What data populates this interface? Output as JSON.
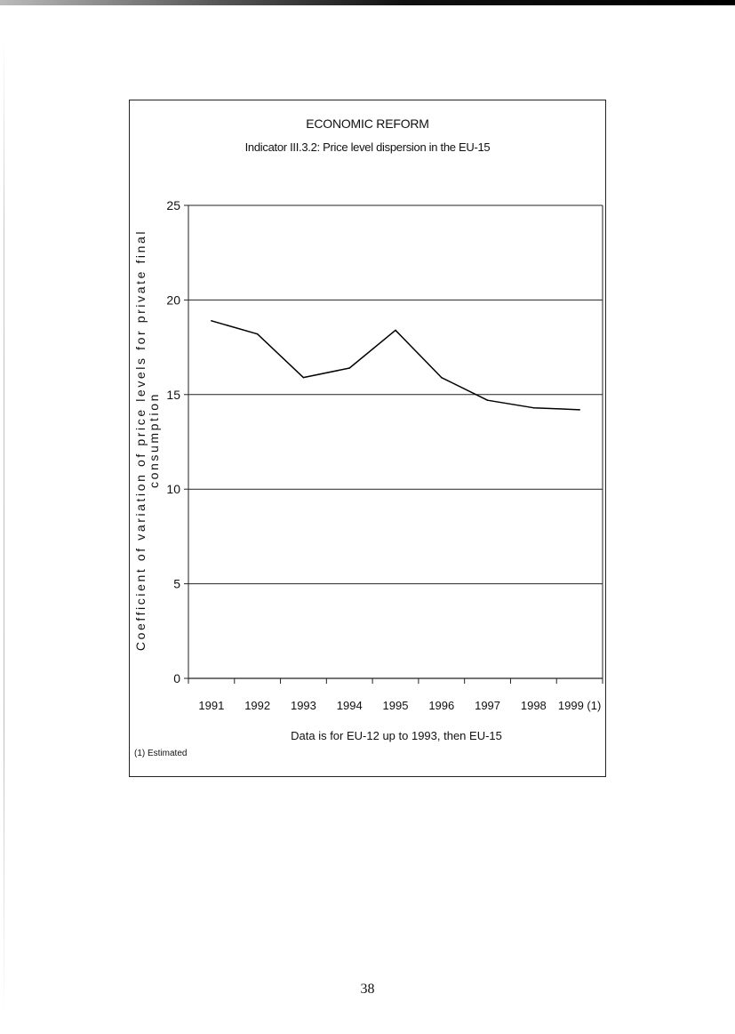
{
  "page": {
    "note": "(1) Estimated",
    "page_number": "38"
  },
  "chart_data": {
    "type": "line",
    "title": "ECONOMIC REFORM",
    "subtitle": "Indicator III.3.2: Price level dispersion in the EU-15",
    "ylabel_line1": "Coefficient of variation of price levels for private final",
    "ylabel_line2": "consumption",
    "xlabel": "Data is for EU-12 up to 1993, then EU-15",
    "categories": [
      "1991",
      "1992",
      "1993",
      "1994",
      "1995",
      "1996",
      "1997",
      "1998",
      "1999 (1)"
    ],
    "values": [
      18.9,
      18.2,
      15.9,
      16.4,
      18.4,
      15.9,
      14.7,
      14.3,
      14.2
    ],
    "ylim": [
      0,
      25
    ],
    "yticks": [
      0,
      5,
      10,
      15,
      20,
      25
    ],
    "grid": true,
    "legend": "none",
    "line_color": "#000000"
  }
}
